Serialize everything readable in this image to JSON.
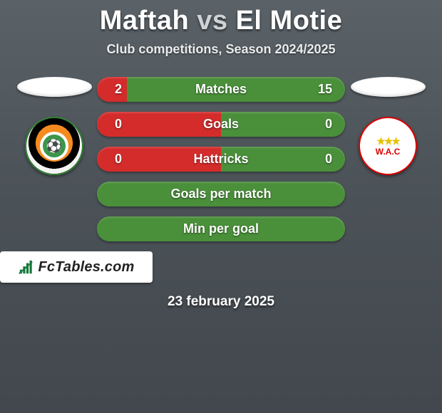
{
  "title": {
    "team1": "Maftah",
    "vs": "vs",
    "team2": "El Motie",
    "team1_color": "#ffffff",
    "team2_color": "#ffffff",
    "vs_color": "#cfd3d6"
  },
  "subtitle": "Club competitions, Season 2024/2025",
  "date": "23 february 2025",
  "background_gradient": [
    "#5a6268",
    "#4b5258",
    "#42484d"
  ],
  "teams": {
    "left": {
      "name": "Maftah",
      "badge_primary": "#f58a1f",
      "badge_ring": "#000000",
      "badge_outer": "#2c7a2c"
    },
    "right": {
      "name": "El Motie",
      "badge_primary": "#ffffff",
      "badge_accent": "#d00000",
      "abbr": "W.A.C"
    }
  },
  "stats": [
    {
      "label": "Matches",
      "left_value": "2",
      "right_value": "15",
      "left_color": "#d42b2b",
      "right_color": "#4a8f3a",
      "left_pct": 12
    },
    {
      "label": "Goals",
      "left_value": "0",
      "right_value": "0",
      "left_color": "#d42b2b",
      "right_color": "#4a8f3a",
      "left_pct": 50
    },
    {
      "label": "Hattricks",
      "left_value": "0",
      "right_value": "0",
      "left_color": "#d42b2b",
      "right_color": "#4a8f3a",
      "left_pct": 50
    },
    {
      "label": "Goals per match",
      "left_value": "",
      "right_value": "",
      "left_color": "#4a8f3a",
      "right_color": "#4a8f3a",
      "left_pct": 50
    },
    {
      "label": "Min per goal",
      "left_value": "",
      "right_value": "",
      "left_color": "#4a8f3a",
      "right_color": "#4a8f3a",
      "left_pct": 50
    }
  ],
  "fctables": {
    "text": "FcTables.com",
    "logo_color": "#222222",
    "icon_bars": [
      6,
      11,
      16,
      20
    ]
  },
  "bar_style": {
    "height": 35,
    "radius": 18,
    "label_fontsize": 18,
    "value_fontsize": 18
  }
}
